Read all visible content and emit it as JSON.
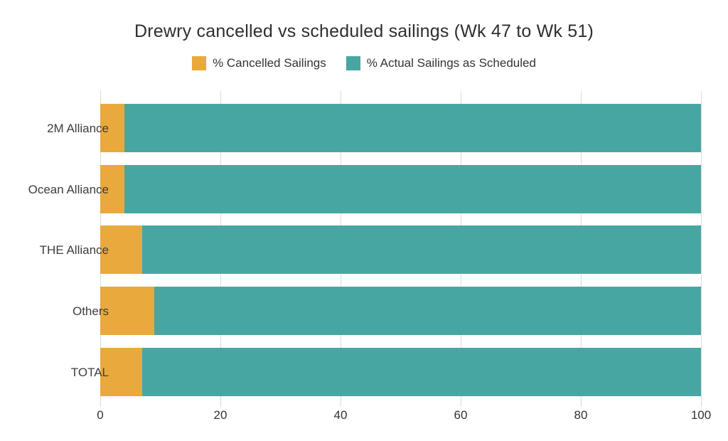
{
  "chart_data": {
    "type": "bar",
    "orientation": "horizontal",
    "stacked": true,
    "title": "Drewry cancelled vs scheduled sailings (Wk 47 to Wk 51)",
    "categories": [
      "2M Alliance",
      "Ocean Alliance",
      "THE Alliance",
      "Others",
      "TOTAL"
    ],
    "series": [
      {
        "name": "% Cancelled Sailings",
        "color": "#E9A93C",
        "values": [
          4,
          4,
          7,
          9,
          7
        ]
      },
      {
        "name": "% Actual Sailings as Scheduled",
        "color": "#48A6A2",
        "values": [
          96,
          96,
          93,
          91,
          93
        ]
      }
    ],
    "xlabel": "",
    "ylabel": "",
    "x_axis": {
      "min": 0,
      "max": 100,
      "ticks": [
        0,
        20,
        40,
        60,
        80,
        100
      ]
    },
    "grid": "vertical-gridlines",
    "legend_position": "top-center",
    "colors": {
      "grid": "#dbdbdb",
      "text": "#333333",
      "background": "#ffffff"
    }
  }
}
